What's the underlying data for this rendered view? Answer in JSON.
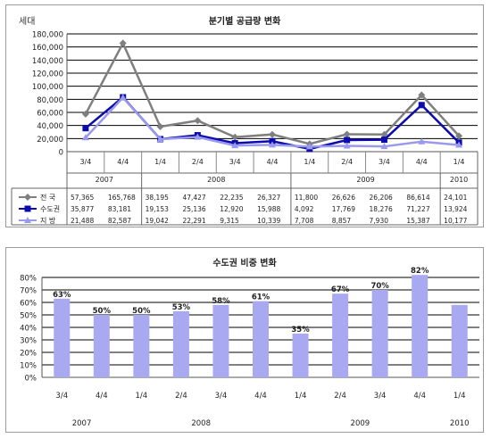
{
  "chart_data": [
    {
      "type": "line",
      "title": "분기별 공급량 변화",
      "ylabel": "세대",
      "ylim": [
        0,
        180000
      ],
      "yticks": [
        "0",
        "20,000",
        "40,000",
        "60,000",
        "80,000",
        "100,000",
        "120,000",
        "140,000",
        "160,000",
        "180,000"
      ],
      "ytick_values": [
        0,
        20000,
        40000,
        60000,
        80000,
        100000,
        120000,
        140000,
        160000,
        180000
      ],
      "grid": true,
      "categories": [
        "3/4",
        "4/4",
        "1/4",
        "2/4",
        "3/4",
        "4/4",
        "1/4",
        "2/4",
        "3/4",
        "4/4",
        "1/4"
      ],
      "years": [
        {
          "label": "2007",
          "span": 2
        },
        {
          "label": "2008",
          "span": 4
        },
        {
          "label": "2009",
          "span": 4
        },
        {
          "label": "2010",
          "span": 1
        }
      ],
      "series": [
        {
          "name": "전  국",
          "color": "#7f7f7f",
          "marker": "diamond",
          "values": [
            57365,
            165768,
            38195,
            47427,
            22235,
            26327,
            11800,
            26626,
            26206,
            86614,
            24101
          ],
          "labels": [
            "57,365",
            "165,768",
            "38,195",
            "47,427",
            "22,235",
            "26,327",
            "11,800",
            "26,626",
            "26,206",
            "86,614",
            "24,101"
          ]
        },
        {
          "name": "수도권",
          "color": "#0b0bb0",
          "marker": "square",
          "values": [
            35877,
            83181,
            19153,
            25136,
            12920,
            15988,
            4092,
            17769,
            18276,
            71227,
            13924
          ],
          "labels": [
            "35,877",
            "83,181",
            "19,153",
            "25,136",
            "12,920",
            "15,988",
            "4,092",
            "17,769",
            "18,276",
            "71,227",
            "13,924"
          ]
        },
        {
          "name": "지  방",
          "color": "#9999ee",
          "marker": "triangle",
          "values": [
            21488,
            82587,
            19042,
            22291,
            9315,
            10339,
            7708,
            8857,
            7930,
            15387,
            10177
          ],
          "labels": [
            "21,488",
            "82,587",
            "19,042",
            "22,291",
            "9,315",
            "10,339",
            "7,708",
            "8,857",
            "7,930",
            "15,387",
            "10,177"
          ]
        }
      ]
    },
    {
      "type": "bar",
      "title": "수도권 비중 변화",
      "ylim": [
        0,
        80
      ],
      "yticks": [
        "0%",
        "10%",
        "20%",
        "30%",
        "40%",
        "50%",
        "60%",
        "70%",
        "80%"
      ],
      "ytick_values": [
        0,
        10,
        20,
        30,
        40,
        50,
        60,
        70,
        80
      ],
      "categories": [
        "3/4",
        "4/4",
        "1/4",
        "2/4",
        "3/4",
        "4/4",
        "1/4",
        "2/4",
        "3/4",
        "4/4",
        "1/4"
      ],
      "years": [
        {
          "label": "2007",
          "span": 2
        },
        {
          "label": "2008",
          "span": 4
        },
        {
          "label": "2009",
          "span": 4
        },
        {
          "label": "2010",
          "span": 1
        }
      ],
      "values": [
        63,
        50,
        50,
        53,
        58,
        61,
        35,
        67,
        70,
        82,
        58
      ],
      "data_labels": [
        "63%",
        "50%",
        "50%",
        "53%",
        "58%",
        "61%",
        "35%",
        "67%",
        "70%",
        "82%",
        ""
      ],
      "bar_color": "#a9a9f2"
    }
  ]
}
